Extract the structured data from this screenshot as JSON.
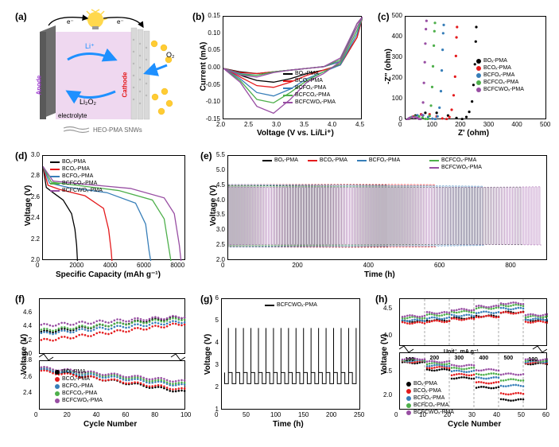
{
  "labels": {
    "a": "(a)",
    "b": "(b)",
    "c": "(c)",
    "d": "(d)",
    "e": "(e)",
    "f": "(f)",
    "g": "(g)",
    "h": "(h)"
  },
  "series_colors": {
    "BOx": "#000000",
    "BCOx": "#e41a1c",
    "BCFOx": "#377eb8",
    "BCFCOx": "#4daf4a",
    "BCFCWOx": "#984ea3"
  },
  "panel_a": {
    "labels": {
      "anode": "Anode",
      "cathode": "Cathode",
      "li_plus": "Li⁺",
      "li2o2": "Li₂O₂",
      "o2": "O₂",
      "e_minus_left": "e⁻",
      "e_minus_right": "e⁻",
      "electrolyte": "electrolyte",
      "heo": "HEO-PMA SNWs"
    },
    "colors": {
      "anode": "#6d6d6d",
      "cathode": "#e8e8e8",
      "separator": "#f0d6f0",
      "electrolyte": "#e8d6f0",
      "bulb_glow": "#ffd84d",
      "li_arrow": "#1e90ff",
      "li2o2_arrow": "#1e90ff",
      "o2_arrow": "#1e90ff",
      "o2_particle": "#ffcc33",
      "e_arrow": "#000000"
    }
  },
  "panel_b": {
    "type": "line",
    "title": "",
    "xlabel": "Voltage (V vs. Li/Li⁺)",
    "ylabel": "Current (mA)",
    "xlim": [
      2.0,
      4.5
    ],
    "ylim": [
      -0.15,
      0.15
    ],
    "xticks": [
      2.0,
      2.5,
      3.0,
      3.5,
      4.0,
      4.5
    ],
    "yticks": [
      -0.15,
      -0.1,
      -0.05,
      0.0,
      0.05,
      0.1,
      0.15
    ],
    "label_fontsize": 10,
    "series": [
      {
        "name": "BOₓ-PMA",
        "color": "#000000",
        "x": [
          2.0,
          2.3,
          2.6,
          2.9,
          3.2,
          3.5,
          3.8,
          4.1,
          4.4,
          4.5,
          4.4,
          4.1,
          3.8,
          3.5,
          3.2,
          2.9,
          2.6,
          2.3,
          2.0
        ],
        "y": [
          0,
          -0.02,
          -0.035,
          -0.04,
          -0.03,
          -0.015,
          -0.005,
          0.01,
          0.09,
          0.15,
          0.13,
          0.02,
          0.005,
          0,
          -0.005,
          -0.01,
          -0.015,
          -0.01,
          0
        ]
      },
      {
        "name": "BCOₓ-PMA",
        "color": "#e41a1c",
        "x": [
          2.0,
          2.3,
          2.6,
          2.9,
          3.2,
          3.5,
          3.8,
          4.1,
          4.4,
          4.5,
          4.4,
          4.1,
          3.8,
          3.5,
          3.2,
          2.9,
          2.6,
          2.3,
          2.0
        ],
        "y": [
          0,
          -0.025,
          -0.05,
          -0.055,
          -0.04,
          -0.02,
          -0.005,
          0.01,
          0.09,
          0.15,
          0.13,
          0.02,
          0.005,
          0,
          -0.005,
          -0.01,
          -0.015,
          -0.012,
          0
        ]
      },
      {
        "name": "BCFOₓ-PMA",
        "color": "#377eb8",
        "x": [
          2.0,
          2.3,
          2.6,
          2.9,
          3.2,
          3.5,
          3.8,
          4.1,
          4.4,
          4.5,
          4.4,
          4.1,
          3.8,
          3.5,
          3.2,
          2.9,
          2.6,
          2.3,
          2.0
        ],
        "y": [
          0,
          -0.03,
          -0.07,
          -0.08,
          -0.06,
          -0.03,
          -0.01,
          0.01,
          0.1,
          0.15,
          0.13,
          0.02,
          0.005,
          0,
          -0.005,
          -0.01,
          -0.02,
          -0.015,
          0
        ]
      },
      {
        "name": "BCFCOₓ-PMA",
        "color": "#4daf4a",
        "x": [
          2.0,
          2.3,
          2.6,
          2.9,
          3.2,
          3.5,
          3.8,
          4.1,
          4.4,
          4.5,
          4.4,
          4.1,
          3.8,
          3.5,
          3.2,
          2.9,
          2.6,
          2.3,
          2.0
        ],
        "y": [
          0,
          -0.035,
          -0.09,
          -0.1,
          -0.07,
          -0.035,
          -0.01,
          0.015,
          0.11,
          0.15,
          0.13,
          0.025,
          0.005,
          0,
          -0.005,
          -0.01,
          -0.02,
          -0.018,
          0
        ]
      },
      {
        "name": "BCFCWOₓ-PMA",
        "color": "#984ea3",
        "x": [
          2.0,
          2.3,
          2.6,
          2.9,
          3.2,
          3.5,
          3.8,
          4.1,
          4.4,
          4.5,
          4.4,
          4.1,
          3.8,
          3.5,
          3.2,
          2.9,
          2.6,
          2.3,
          2.0
        ],
        "y": [
          0,
          -0.04,
          -0.11,
          -0.13,
          -0.09,
          -0.04,
          -0.015,
          0.02,
          0.12,
          0.15,
          0.13,
          0.03,
          0.005,
          0,
          -0.005,
          -0.012,
          -0.025,
          -0.02,
          0
        ]
      }
    ]
  },
  "panel_c": {
    "type": "scatter",
    "title": "",
    "xlabel": "Z' (ohm)",
    "ylabel": "-Z'' (ohm)",
    "xlim": [
      0,
      500
    ],
    "ylim": [
      0,
      500
    ],
    "xticks": [
      0,
      100,
      200,
      300,
      400,
      500
    ],
    "yticks": [
      0,
      100,
      200,
      300,
      400,
      500
    ],
    "label_fontsize": 10,
    "series": [
      {
        "name": "BOₓ-PMA",
        "color": "#000000",
        "x": [
          5,
          15,
          35,
          70,
          110,
          150,
          180,
          200,
          215,
          225,
          235,
          240,
          245,
          248,
          250
        ],
        "y": [
          0,
          8,
          22,
          35,
          35,
          22,
          10,
          5,
          15,
          40,
          90,
          170,
          270,
          380,
          450
        ]
      },
      {
        "name": "BCOₓ-PMA",
        "color": "#e41a1c",
        "x": [
          5,
          12,
          28,
          55,
          85,
          110,
          130,
          145,
          155,
          163,
          170,
          175,
          178,
          180,
          182
        ],
        "y": [
          0,
          7,
          18,
          28,
          28,
          18,
          8,
          5,
          15,
          50,
          120,
          210,
          310,
          400,
          450
        ]
      },
      {
        "name": "BCFOₓ-PMA",
        "color": "#377eb8",
        "x": [
          5,
          10,
          22,
          42,
          62,
          80,
          95,
          105,
          113,
          120,
          125,
          128,
          131,
          133,
          135
        ],
        "y": [
          0,
          6,
          15,
          23,
          23,
          15,
          7,
          5,
          18,
          60,
          140,
          240,
          340,
          420,
          460
        ]
      },
      {
        "name": "BCFCOₓ-PMA",
        "color": "#4daf4a",
        "x": [
          5,
          9,
          18,
          33,
          48,
          60,
          70,
          78,
          85,
          90,
          94,
          97,
          100,
          102,
          104
        ],
        "y": [
          0,
          5,
          12,
          18,
          18,
          12,
          6,
          5,
          20,
          70,
          160,
          260,
          360,
          430,
          470
        ]
      },
      {
        "name": "BCFCWOₓ-PMA",
        "color": "#984ea3",
        "x": [
          5,
          8,
          14,
          24,
          34,
          42,
          48,
          53,
          58,
          62,
          65,
          68,
          70,
          72,
          74
        ],
        "y": [
          0,
          4,
          10,
          14,
          14,
          10,
          5,
          5,
          25,
          85,
          180,
          280,
          370,
          440,
          480
        ]
      }
    ]
  },
  "panel_d": {
    "type": "line",
    "xlabel": "Specific Capacity (mAh g⁻¹)",
    "ylabel": "Voltage (V)",
    "xlim": [
      0,
      8500
    ],
    "ylim": [
      2.0,
      3.0
    ],
    "xticks": [
      0,
      2000,
      4000,
      6000,
      8000
    ],
    "yticks": [
      2.0,
      2.2,
      2.4,
      2.6,
      2.8,
      3.0
    ],
    "label_fontsize": 10,
    "series": [
      {
        "name": "BOₓ-PMA",
        "color": "#000000",
        "x": [
          0,
          200,
          600,
          1200,
          1700,
          1900,
          2000,
          2050
        ],
        "y": [
          2.9,
          2.7,
          2.65,
          2.58,
          2.45,
          2.3,
          2.15,
          2.0
        ]
      },
      {
        "name": "BCOₓ-PMA",
        "color": "#e41a1c",
        "x": [
          0,
          300,
          1000,
          2500,
          3600,
          3900,
          4050,
          4100
        ],
        "y": [
          2.9,
          2.72,
          2.68,
          2.62,
          2.5,
          2.3,
          2.1,
          2.0
        ]
      },
      {
        "name": "BCFOₓ-PMA",
        "color": "#377eb8",
        "x": [
          0,
          400,
          1500,
          3800,
          5500,
          6100,
          6300,
          6400
        ],
        "y": [
          2.9,
          2.74,
          2.7,
          2.65,
          2.55,
          2.35,
          2.1,
          2.0
        ]
      },
      {
        "name": "BCFCOₓ-PMA",
        "color": "#4daf4a",
        "x": [
          0,
          500,
          2000,
          4500,
          6500,
          7200,
          7500,
          7600
        ],
        "y": [
          2.9,
          2.75,
          2.72,
          2.67,
          2.58,
          2.4,
          2.1,
          2.0
        ]
      },
      {
        "name": "BCFCWOₓ-PMA",
        "color": "#984ea3",
        "x": [
          0,
          600,
          2500,
          5200,
          7200,
          7800,
          8100,
          8200
        ],
        "y": [
          2.9,
          2.76,
          2.73,
          2.69,
          2.6,
          2.45,
          2.15,
          2.0
        ]
      }
    ]
  },
  "panel_e": {
    "type": "line-cycling",
    "xlabel": "Time (h)",
    "ylabel": "Voltage (V)",
    "xlim": [
      0,
      900
    ],
    "ylim": [
      2.0,
      5.5
    ],
    "xticks": [
      0,
      200,
      400,
      600,
      800
    ],
    "yticks": [
      2.0,
      2.5,
      3.0,
      3.5,
      4.0,
      4.5,
      5.0,
      5.5
    ],
    "label_fontsize": 10,
    "series_names": [
      "BOₓ-PMA",
      "BCOₓ-PMA",
      "BCFOₓ-PMA",
      "BCFCOₓ-PMA",
      "BCFCWOₓ-PMA"
    ],
    "series_colors": [
      "#000000",
      "#e41a1c",
      "#377eb8",
      "#4daf4a",
      "#984ea3"
    ],
    "cycle_period_h": 9,
    "v_charge_top": 4.5,
    "v_discharge_bot": 2.5,
    "end_cycles": [
      450,
      580,
      720,
      820,
      880
    ]
  },
  "panel_f": {
    "type": "scatter-split",
    "xlabel": "Cycle Number",
    "ylabel": "Voltage (V)",
    "xlim": [
      0,
      100
    ],
    "xticks": [
      0,
      20,
      40,
      60,
      80,
      100
    ],
    "y_top": [
      4.0,
      4.8
    ],
    "y_bot": [
      2.2,
      2.8
    ],
    "yticks_top": [
      4.0,
      4.2,
      4.4,
      4.6
    ],
    "yticks_bot": [
      2.4,
      2.6,
      2.8
    ],
    "label_fontsize": 10,
    "charge": [
      {
        "name": "BOₓ-PMA",
        "color": "#000000",
        "start": 4.32,
        "end": 4.55
      },
      {
        "name": "BCOₓ-PMA",
        "color": "#e41a1c",
        "start": 4.2,
        "end": 4.45
      },
      {
        "name": "BCFOₓ-PMA",
        "color": "#377eb8",
        "start": 4.3,
        "end": 4.48
      },
      {
        "name": "BCFCOₓ-PMA",
        "color": "#4daf4a",
        "start": 4.35,
        "end": 4.52
      },
      {
        "name": "BCFCWOₓ-PMA",
        "color": "#984ea3",
        "start": 4.42,
        "end": 4.55
      }
    ],
    "discharge": [
      {
        "name": "BOₓ-PMA",
        "color": "#000000",
        "start": 2.7,
        "end": 2.42
      },
      {
        "name": "BCOₓ-PMA",
        "color": "#e41a1c",
        "start": 2.68,
        "end": 2.45
      },
      {
        "name": "BCFOₓ-PMA",
        "color": "#377eb8",
        "start": 2.7,
        "end": 2.5
      },
      {
        "name": "BCFCOₓ-PMA",
        "color": "#4daf4a",
        "start": 2.72,
        "end": 2.52
      },
      {
        "name": "BCFCWOₓ-PMA",
        "color": "#984ea3",
        "start": 2.72,
        "end": 2.55
      }
    ]
  },
  "panel_g": {
    "type": "line-cycling",
    "xlabel": "Time (h)",
    "ylabel": "Voltage (V)",
    "xlim": [
      0,
      250
    ],
    "ylim": [
      1,
      6
    ],
    "xticks": [
      0,
      50,
      100,
      150,
      200,
      250
    ],
    "yticks": [
      1,
      2,
      3,
      4,
      5,
      6
    ],
    "legend_single": "BCFCWOₓ-PMA",
    "color": "#000000",
    "n_cycles": 18,
    "cycle_period_h": 13.5,
    "v_top": 4.7,
    "v_bot": 2.2
  },
  "panel_h": {
    "type": "scatter-rate",
    "xlabel": "Cycle Number",
    "ylabel": "Voltage (V)",
    "unit_label": "Unit：mA g⁻¹",
    "xlim": [
      0,
      60
    ],
    "xticks": [
      0,
      10,
      20,
      30,
      40,
      50,
      60
    ],
    "y_top": [
      3.8,
      4.7
    ],
    "y_bot": [
      1.7,
      2.9
    ],
    "yticks_top": [
      4.0,
      4.5
    ],
    "yticks_bot": [
      2.0,
      2.5
    ],
    "label_fontsize": 10,
    "rates": [
      100,
      200,
      300,
      400,
      500,
      100
    ],
    "rate_boundaries": [
      10,
      20,
      30,
      40,
      50
    ],
    "series_names": [
      "BOₓ-PMA",
      "BCOₓ-PMA",
      "BCFOₓ-PMA",
      "BCFCOₓ-PMA",
      "BCFCWOₓ-PMA"
    ],
    "series_colors": [
      "#000000",
      "#e41a1c",
      "#377eb8",
      "#4daf4a",
      "#984ea3"
    ],
    "charge_by_rate": [
      [
        4.28,
        4.3,
        4.34,
        4.38,
        4.45,
        4.3
      ],
      [
        4.25,
        4.28,
        4.32,
        4.37,
        4.44,
        4.27
      ],
      [
        4.3,
        4.34,
        4.39,
        4.45,
        4.52,
        4.32
      ],
      [
        4.35,
        4.4,
        4.46,
        4.53,
        4.58,
        4.37
      ],
      [
        4.38,
        4.44,
        4.5,
        4.56,
        4.62,
        4.4
      ]
    ],
    "discharge_by_rate": [
      [
        2.7,
        2.55,
        2.38,
        2.18,
        1.92,
        2.68
      ],
      [
        2.72,
        2.6,
        2.45,
        2.28,
        2.05,
        2.7
      ],
      [
        2.74,
        2.64,
        2.52,
        2.38,
        2.22,
        2.72
      ],
      [
        2.76,
        2.68,
        2.58,
        2.46,
        2.34,
        2.74
      ],
      [
        2.78,
        2.72,
        2.64,
        2.55,
        2.46,
        2.76
      ]
    ]
  }
}
